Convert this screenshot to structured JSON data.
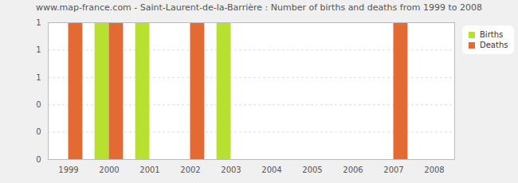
{
  "chart_data": {
    "type": "bar",
    "title": "www.map-france.com - Saint-Laurent-de-la-Barrière : Number of births and deaths from 1999 to 2008",
    "categories": [
      "1999",
      "2000",
      "2001",
      "2002",
      "2003",
      "2004",
      "2005",
      "2006",
      "2007",
      "2008"
    ],
    "series": [
      {
        "name": "Births",
        "color": "#b8e030",
        "values": [
          0,
          1,
          1,
          0,
          1,
          0,
          0,
          0,
          0,
          0
        ]
      },
      {
        "name": "Deaths",
        "color": "#e36a33",
        "values": [
          1,
          1,
          0,
          1,
          0,
          0,
          0,
          0,
          1,
          0
        ]
      }
    ],
    "ylim": [
      0,
      1
    ],
    "yticks": [
      0,
      {
        "value": 0.2,
        "label": "0"
      },
      {
        "value": 0.4,
        "label": "0"
      },
      {
        "value": 0.6,
        "label": "1"
      },
      {
        "value": 0.8,
        "label": "1"
      },
      1
    ],
    "grid": true,
    "legend": "upper right"
  }
}
